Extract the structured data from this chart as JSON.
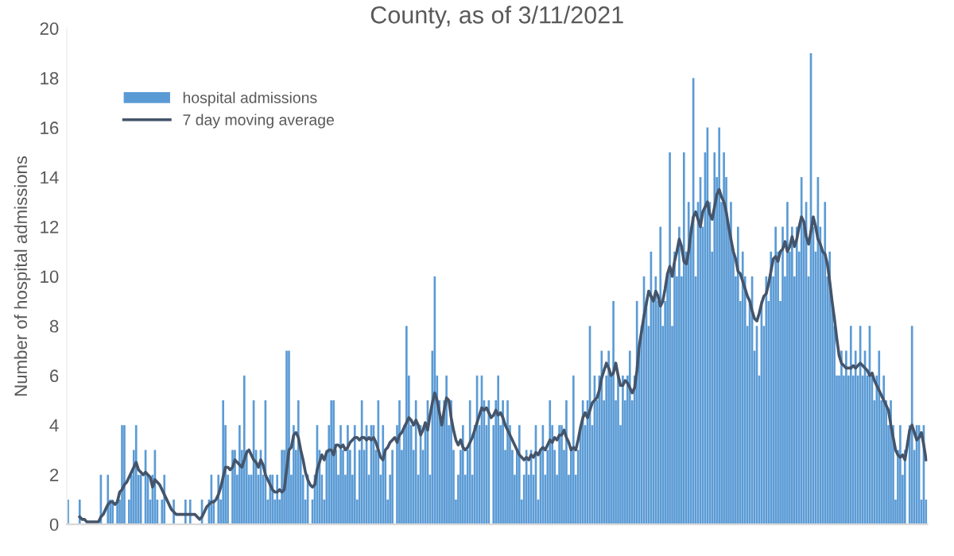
{
  "chart_data": {
    "type": "bar",
    "title": "County, as of 3/11/2021",
    "ylabel": "Number of hospital admissions",
    "categories": [
      null,
      null,
      null,
      null,
      null,
      null,
      null,
      null,
      null,
      null,
      null,
      null,
      null,
      null,
      null,
      null,
      null,
      null,
      null,
      null,
      null,
      null,
      null,
      null,
      null,
      null,
      null,
      null,
      null,
      null,
      null,
      null,
      null,
      null,
      null,
      null,
      null,
      null,
      null,
      null,
      null,
      null,
      null,
      null,
      null,
      null,
      null,
      null,
      null,
      null,
      null,
      null,
      null,
      null,
      null,
      null,
      null,
      null,
      null,
      null,
      null,
      null,
      null,
      null,
      null,
      null,
      null,
      null,
      null,
      null,
      null,
      null,
      null,
      null,
      null,
      null,
      null,
      null,
      null,
      null,
      null,
      null,
      null,
      null,
      null,
      null,
      null,
      null,
      null,
      null,
      null,
      null,
      null,
      null,
      null,
      null,
      null,
      null,
      null,
      null,
      null,
      null,
      null,
      null,
      null,
      null,
      null,
      null,
      null,
      null,
      null,
      null,
      null,
      null,
      null,
      null,
      null,
      null,
      null,
      null,
      null,
      null,
      null,
      null,
      null,
      null,
      null,
      null,
      null,
      null,
      null,
      null,
      null,
      null,
      null,
      null,
      null,
      null,
      null,
      null,
      null,
      null,
      null,
      null,
      null,
      null,
      null,
      null,
      null,
      null,
      null,
      null,
      null,
      null,
      null,
      null,
      null,
      null,
      null,
      null,
      null,
      null,
      null,
      null,
      null,
      null,
      null,
      null,
      null,
      null,
      null,
      null,
      null,
      null,
      null,
      null,
      null,
      null,
      null,
      null,
      null,
      null,
      null,
      null,
      null,
      null,
      null,
      null,
      null,
      null,
      null,
      null,
      null,
      null,
      null,
      null,
      null,
      null,
      null,
      null,
      null,
      null,
      null,
      null,
      null,
      null,
      null,
      null,
      null,
      null,
      null,
      null,
      null,
      null,
      null,
      null,
      null,
      null,
      null,
      null,
      null,
      null,
      null,
      null,
      null,
      null,
      null,
      null,
      null,
      null,
      null,
      null,
      null,
      null,
      null,
      null,
      null,
      null,
      null,
      null,
      null,
      null,
      null,
      null,
      null,
      null,
      null,
      null,
      null,
      null,
      null,
      null,
      null,
      null,
      null,
      null,
      null,
      null,
      null,
      null,
      null,
      null,
      null,
      null,
      null,
      null,
      null,
      null,
      null,
      null,
      null,
      null,
      null,
      null,
      null,
      null,
      null,
      null,
      null,
      null,
      null,
      null,
      null,
      null,
      null,
      null,
      null,
      null,
      null,
      null,
      null,
      null,
      null,
      null,
      null,
      null,
      null,
      null,
      null,
      null,
      null,
      null,
      null,
      null,
      null,
      null,
      null,
      null,
      null,
      null,
      null,
      null,
      null,
      null,
      null,
      null,
      null,
      null,
      null,
      null,
      null,
      null,
      null,
      null,
      null,
      null,
      null,
      null,
      null,
      null,
      null,
      null,
      null,
      null,
      null,
      null,
      null,
      null,
      null,
      null,
      null,
      null,
      null,
      null,
      null,
      null,
      null,
      null,
      null,
      null,
      null,
      null,
      null,
      null,
      null,
      null,
      null,
      null,
      null,
      null,
      null,
      null,
      null,
      null,
      null,
      null
    ],
    "series": [
      {
        "name": "hospital admissions",
        "color": "#5b9bd5",
        "values": [
          1,
          0,
          0,
          0,
          0,
          1,
          0,
          0,
          0,
          0,
          0,
          0,
          0,
          0,
          2,
          0,
          0,
          2,
          1,
          1,
          0,
          1,
          1,
          4,
          4,
          0,
          1,
          2,
          3,
          4,
          2,
          2,
          0,
          3,
          2,
          1,
          2,
          3,
          1,
          0,
          1,
          2,
          0,
          0,
          0,
          1,
          0,
          0,
          0,
          0,
          1,
          0,
          1,
          0,
          0,
          0,
          0,
          1,
          0,
          0,
          1,
          2,
          1,
          0,
          2,
          1,
          5,
          4,
          2,
          0,
          3,
          3,
          2,
          4,
          3,
          6,
          3,
          2,
          2,
          5,
          3,
          2,
          3,
          2,
          5,
          1,
          2,
          2,
          1,
          2,
          1,
          3,
          3,
          7,
          7,
          2,
          4,
          3,
          5,
          3,
          2,
          1,
          2,
          0,
          1,
          2,
          4,
          3,
          2,
          1,
          3,
          4,
          5,
          5,
          3,
          2,
          4,
          3,
          2,
          4,
          3,
          2,
          4,
          1,
          3,
          5,
          3,
          4,
          2,
          4,
          4,
          3,
          5,
          2,
          4,
          3,
          1,
          2,
          3,
          0,
          4,
          5,
          3,
          4,
          8,
          6,
          4,
          3,
          5,
          2,
          4,
          3,
          4,
          5,
          2,
          7,
          10,
          6,
          5,
          4,
          5,
          6,
          4,
          5,
          3,
          1,
          2,
          3,
          4,
          2,
          3,
          5,
          2,
          4,
          6,
          4,
          6,
          5,
          4,
          5,
          0,
          4,
          5,
          6,
          4,
          5,
          3,
          5,
          4,
          3,
          2,
          3,
          4,
          1,
          2,
          3,
          2,
          3,
          2,
          4,
          1,
          3,
          4,
          2,
          3,
          5,
          4,
          3,
          2,
          4,
          4,
          3,
          5,
          2,
          3,
          6,
          2,
          3,
          4,
          5,
          4,
          5,
          8,
          4,
          6,
          5,
          6,
          7,
          5,
          6,
          7,
          6,
          9,
          5,
          6,
          4,
          6,
          5,
          6,
          7,
          5,
          6,
          9,
          7,
          8,
          10,
          9,
          8,
          11,
          9,
          10,
          9,
          12,
          8,
          9,
          10,
          15,
          8,
          11,
          10,
          12,
          10,
          15,
          11,
          13,
          12,
          18,
          10,
          13,
          14,
          12,
          15,
          16,
          13,
          11,
          15,
          14,
          16,
          13,
          15,
          14,
          12,
          13,
          11,
          10,
          12,
          9,
          11,
          10,
          8,
          9,
          10,
          7,
          8,
          6,
          9,
          8,
          10,
          9,
          11,
          10,
          12,
          11,
          9,
          12,
          10,
          13,
          11,
          12,
          10,
          12,
          11,
          14,
          12,
          13,
          10,
          19,
          12,
          11,
          14,
          12,
          11,
          13,
          10,
          11,
          9,
          8,
          6,
          6,
          7,
          6,
          7,
          6,
          8,
          6,
          7,
          6,
          8,
          6,
          7,
          6,
          8,
          6,
          5,
          6,
          7,
          5,
          6,
          5,
          4,
          5,
          4,
          1,
          3,
          4,
          2,
          3,
          0,
          4,
          8,
          3,
          4,
          4,
          1,
          4,
          1
        ]
      },
      {
        "name": "7 day moving average",
        "type": "line",
        "color": "#44546a",
        "values": [
          null,
          null,
          null,
          null,
          null,
          0.3,
          0.2,
          0.2,
          0.1,
          0.1,
          0.1,
          0.1,
          0.1,
          0.1,
          0.3,
          0.4,
          0.6,
          0.8,
          0.9,
          0.9,
          0.8,
          0.9,
          1.3,
          1.4,
          1.6,
          1.7,
          1.9,
          2.1,
          2.3,
          2.5,
          2.2,
          2.1,
          2.0,
          2.1,
          2.0,
          1.9,
          1.5,
          1.8,
          1.7,
          1.6,
          1.4,
          1.2,
          1.0,
          0.8,
          0.6,
          0.5,
          0.4,
          0.4,
          0.4,
          0.4,
          0.4,
          0.4,
          0.4,
          0.4,
          0.4,
          0.3,
          0.2,
          0.3,
          0.5,
          0.7,
          0.8,
          0.9,
          0.9,
          1.0,
          1.2,
          1.5,
          1.9,
          2.3,
          2.3,
          2.2,
          2.3,
          2.6,
          2.5,
          2.4,
          2.3,
          2.6,
          2.9,
          3.0,
          2.8,
          2.6,
          2.5,
          2.3,
          2.6,
          2.4,
          2.0,
          1.8,
          1.6,
          1.4,
          1.3,
          1.3,
          1.4,
          1.3,
          1.4,
          2.2,
          3.0,
          3.1,
          3.6,
          3.7,
          3.5,
          3.0,
          2.6,
          2.1,
          1.8,
          1.6,
          1.5,
          1.6,
          2.2,
          2.5,
          2.8,
          2.6,
          2.9,
          3.0,
          3.0,
          2.8,
          3.2,
          3.2,
          3.1,
          3.2,
          3.0,
          3.1,
          3.3,
          3.4,
          3.5,
          3.5,
          3.4,
          3.5,
          3.5,
          3.4,
          3.5,
          3.4,
          3.5,
          3.3,
          3.0,
          2.7,
          2.6,
          3.0,
          3.1,
          3.3,
          3.4,
          3.5,
          3.3,
          3.6,
          3.7,
          3.9,
          4.1,
          4.3,
          4.2,
          4.0,
          4.2,
          4.0,
          3.6,
          3.8,
          4.1,
          3.8,
          4.4,
          4.9,
          5.3,
          5.0,
          4.5,
          4.0,
          4.6,
          5.1,
          5.0,
          4.3,
          3.8,
          3.4,
          3.2,
          3.4,
          3.1,
          3.0,
          3.1,
          3.3,
          3.5,
          3.8,
          4.1,
          4.4,
          4.7,
          4.6,
          4.7,
          4.5,
          4.3,
          4.4,
          4.6,
          4.4,
          4.5,
          4.3,
          4.0,
          3.8,
          3.6,
          3.4,
          3.2,
          3.0,
          2.8,
          2.7,
          2.6,
          2.7,
          2.6,
          2.8,
          2.7,
          2.9,
          2.8,
          3.0,
          3.1,
          3.0,
          3.2,
          3.4,
          3.3,
          3.5,
          3.4,
          3.6,
          3.6,
          3.8,
          3.5,
          3.3,
          3.0,
          3.1,
          3.0,
          3.4,
          3.9,
          4.3,
          4.5,
          4.3,
          4.6,
          4.9,
          5.0,
          5.1,
          5.4,
          5.9,
          6.2,
          6.5,
          6.3,
          6.0,
          6.1,
          6.5,
          6.0,
          5.6,
          5.6,
          5.8,
          5.7,
          5.5,
          5.3,
          5.5,
          6.2,
          7.2,
          7.8,
          8.4,
          8.9,
          9.4,
          9.2,
          9.0,
          9.4,
          9.2,
          8.8,
          9.0,
          9.5,
          10.1,
          10.4,
          10.0,
          10.6,
          11.0,
          11.5,
          11.2,
          10.6,
          10.5,
          11.0,
          11.8,
          12.4,
          12.6,
          12.3,
          12.0,
          12.6,
          12.8,
          13.0,
          12.5,
          12.3,
          12.8,
          13.3,
          13.5,
          13.2,
          13.0,
          12.6,
          12.0,
          11.5,
          11.0,
          10.7,
          10.2,
          10.1,
          9.8,
          9.5,
          9.2,
          9.0,
          8.6,
          8.3,
          8.2,
          8.5,
          8.9,
          9.2,
          9.3,
          9.7,
          10.2,
          10.7,
          10.8,
          10.6,
          11.0,
          11.1,
          11.4,
          11.0,
          11.2,
          11.6,
          11.2,
          11.5,
          12.0,
          12.4,
          12.2,
          11.6,
          11.3,
          11.8,
          12.4,
          12.0,
          11.5,
          11.3,
          11.0,
          10.9,
          10.5,
          9.8,
          9.0,
          8.3,
          7.5,
          6.8,
          6.5,
          6.4,
          6.3,
          6.3,
          6.3,
          6.4,
          6.3,
          6.4,
          6.5,
          6.4,
          6.3,
          6.2,
          6.0,
          6.1,
          5.8,
          5.6,
          5.4,
          5.2,
          5.0,
          4.8,
          4.6,
          4.0,
          3.5,
          3.0,
          2.8,
          2.7,
          2.8,
          2.6,
          3.2,
          3.8,
          4.0,
          3.7,
          3.4,
          3.5,
          3.7,
          3.2,
          2.6
        ]
      }
    ],
    "ylim": [
      0,
      20
    ],
    "yticks": [
      0,
      2,
      4,
      6,
      8,
      10,
      12,
      14,
      16,
      18,
      20
    ],
    "grid": false,
    "legend": "top left",
    "tick_labels": "y"
  }
}
